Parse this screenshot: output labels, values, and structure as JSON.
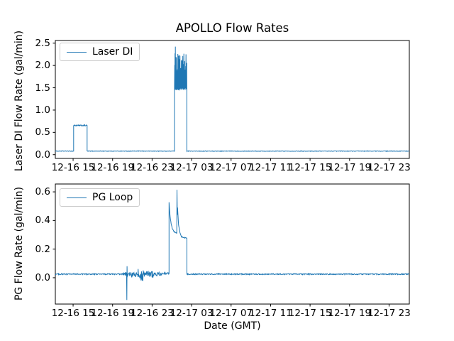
{
  "figure": {
    "background": "#ffffff",
    "line_color": "#1f77b4",
    "text_color": "#000000",
    "legend_border_color": "#cccccc"
  },
  "chart_data": [
    {
      "type": "line",
      "title": "APOLLO Flow Rates",
      "ylabel": "Laser DI Flow Rate (gal/min)",
      "xlabel": "",
      "legend": [
        "Laser DI"
      ],
      "legend_position": "upper left",
      "grid": false,
      "x_unit": "hours since 12-16 00:00 GMT",
      "xlim": [
        13.2,
        49.05
      ],
      "ylim": [
        -0.084,
        2.56
      ],
      "xticks": [
        15,
        19,
        23,
        27,
        31,
        35,
        39,
        43,
        47
      ],
      "xticklabels": [
        "12-16 15",
        "12-16 19",
        "12-16 23",
        "12-17 03",
        "12-17 07",
        "12-17 11",
        "12-17 15",
        "12-17 19",
        "12-17 23"
      ],
      "yticks": [
        0.0,
        0.5,
        1.0,
        1.5,
        2.0,
        2.5
      ],
      "yticklabels": [
        "0.0",
        "0.5",
        "1.0",
        "1.5",
        "2.0",
        "2.5"
      ],
      "series": [
        {
          "name": "Laser DI",
          "segments": [
            {
              "kind": "flat",
              "t0": 13.2,
              "t1": 15.05,
              "v": 0.08,
              "noise": 0.006
            },
            {
              "kind": "flat",
              "t0": 15.05,
              "t1": 16.42,
              "v": 0.655,
              "noise": 0.013
            },
            {
              "kind": "flat",
              "t0": 16.42,
              "t1": 25.27,
              "v": 0.08,
              "noise": 0.006
            },
            {
              "kind": "burst",
              "t0": 25.27,
              "t1": 26.52,
              "lo": 1.44,
              "hi": 2.43,
              "hi_late": 2.27
            },
            {
              "kind": "flat",
              "t0": 26.52,
              "t1": 49.05,
              "v": 0.08,
              "noise": 0.006
            }
          ]
        }
      ]
    },
    {
      "type": "line",
      "title": "",
      "ylabel": "PG Flow Rate (gal/min)",
      "xlabel": "Date (GMT)",
      "legend": [
        "PG Loop"
      ],
      "legend_position": "upper left",
      "grid": false,
      "x_unit": "hours since 12-16 00:00 GMT",
      "xlim": [
        13.2,
        49.05
      ],
      "ylim": [
        -0.184,
        0.655
      ],
      "xticks": [
        15,
        19,
        23,
        27,
        31,
        35,
        39,
        43,
        47
      ],
      "xticklabels": [
        "12-16 15",
        "12-16 19",
        "12-16 23",
        "12-17 03",
        "12-17 07",
        "12-17 11",
        "12-17 15",
        "12-17 19",
        "12-17 23"
      ],
      "yticks": [
        0.0,
        0.2,
        0.4,
        0.6
      ],
      "yticklabels": [
        "0.0",
        "0.2",
        "0.4",
        "0.6"
      ],
      "series": [
        {
          "name": "PG Loop",
          "segments": [
            {
              "kind": "flat",
              "t0": 13.2,
              "t1": 20.05,
              "v": 0.025,
              "noise": 0.004
            },
            {
              "kind": "flat",
              "t0": 20.05,
              "t1": 20.4,
              "v": 0.02,
              "noise": 0.02
            },
            {
              "kind": "anchors",
              "points": [
                [
                  20.41,
                  0.02
                ],
                [
                  20.44,
                  -0.155
                ],
                [
                  20.46,
                  0.08
                ],
                [
                  20.48,
                  0.02
                ]
              ]
            },
            {
              "kind": "flat",
              "t0": 20.48,
              "t1": 21.55,
              "v": 0.02,
              "noise": 0.018
            },
            {
              "kind": "flat",
              "t0": 21.55,
              "t1": 22.25,
              "v": 0.02,
              "noise": 0.045
            },
            {
              "kind": "flat",
              "t0": 22.25,
              "t1": 23.1,
              "v": 0.025,
              "noise": 0.025
            },
            {
              "kind": "flat",
              "t0": 23.1,
              "t1": 24.0,
              "v": 0.025,
              "noise": 0.012
            },
            {
              "kind": "flat",
              "t0": 24.0,
              "t1": 24.72,
              "v": 0.03,
              "noise": 0.006
            },
            {
              "kind": "decay",
              "t0": 24.72,
              "t1": 25.5,
              "v0": 0.53,
              "vend": 0.31,
              "tau": 0.18,
              "noise": 0.004
            },
            {
              "kind": "anchors",
              "points": [
                [
                  25.52,
                  0.615
                ],
                [
                  25.55,
                  0.44
                ],
                [
                  25.58,
                  0.49
                ],
                [
                  25.68,
                  0.37
                ],
                [
                  25.82,
                  0.315
                ],
                [
                  25.95,
                  0.29
                ]
              ]
            },
            {
              "kind": "ramp",
              "t0": 25.95,
              "t1": 26.53,
              "v0": 0.285,
              "v1": 0.275,
              "noise": 0.003
            },
            {
              "kind": "flat",
              "t0": 26.53,
              "t1": 49.05,
              "v": 0.025,
              "noise": 0.004
            }
          ]
        }
      ]
    }
  ]
}
